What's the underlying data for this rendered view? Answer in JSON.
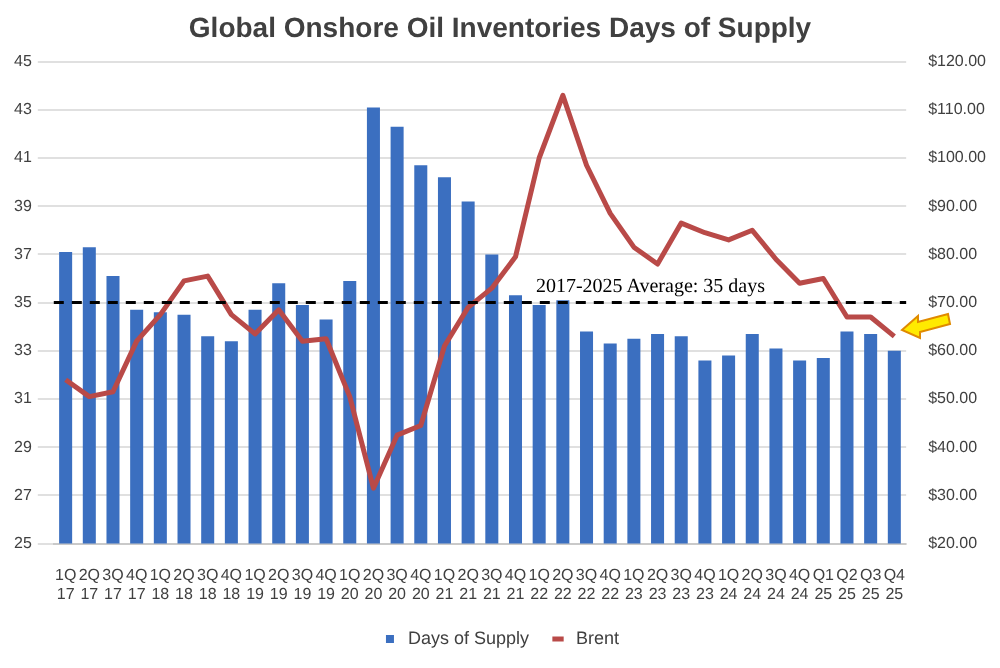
{
  "chart_data": {
    "type": "bar",
    "title": "Global Onshore Oil Inventories Days of Supply",
    "categories": [
      "1Q 17",
      "2Q 17",
      "3Q 17",
      "4Q 17",
      "1Q 18",
      "2Q 18",
      "3Q 18",
      "4Q 18",
      "1Q 19",
      "2Q 19",
      "3Q 19",
      "4Q 19",
      "1Q 20",
      "2Q 20",
      "3Q 20",
      "4Q 20",
      "1Q 21",
      "2Q 21",
      "3Q 21",
      "4Q 21",
      "1Q 22",
      "2Q 22",
      "3Q 22",
      "4Q 22",
      "1Q 23",
      "2Q 23",
      "3Q 23",
      "4Q 23",
      "1Q 24",
      "2Q 24",
      "3Q 24",
      "4Q 24",
      "Q1 25",
      "Q2 25",
      "Q3 25",
      "Q4 25"
    ],
    "series": [
      {
        "name": "Days of Supply",
        "type": "bar",
        "color": "#3b6fc0",
        "values": [
          37.1,
          37.3,
          36.1,
          34.7,
          34.6,
          34.5,
          33.6,
          33.4,
          34.7,
          35.8,
          34.9,
          34.3,
          35.9,
          43.1,
          42.3,
          40.7,
          40.2,
          39.2,
          37.0,
          35.3,
          34.9,
          35.1,
          33.8,
          33.3,
          33.5,
          33.7,
          33.6,
          32.6,
          32.8,
          33.7,
          33.1,
          32.6,
          32.7,
          33.8,
          33.7,
          33.0
        ]
      },
      {
        "name": "Brent",
        "type": "line",
        "axis": "y2",
        "color": "#b94a48",
        "values": [
          54,
          50.5,
          51.5,
          62,
          67.5,
          74.5,
          75.5,
          67.5,
          63.5,
          68.5,
          62,
          62.5,
          50.5,
          31.5,
          42.5,
          44.5,
          61,
          69,
          73,
          79.5,
          100,
          113,
          98.5,
          88.5,
          81.5,
          78,
          86.5,
          84.5,
          83,
          85,
          79,
          74,
          75,
          67,
          67,
          63
        ]
      }
    ],
    "ylim": [
      25,
      45
    ],
    "yticks": [
      25,
      27,
      29,
      31,
      33,
      35,
      37,
      39,
      41,
      43,
      45
    ],
    "y2lim": [
      20,
      120
    ],
    "y2ticks": [
      {
        "value": 20,
        "label": "$20.00"
      },
      {
        "value": 30,
        "label": "$30.00"
      },
      {
        "value": 40,
        "label": "$40.00"
      },
      {
        "value": 50,
        "label": "$50.00"
      },
      {
        "value": 60,
        "label": "$60.00"
      },
      {
        "value": 70,
        "label": "$70.00"
      },
      {
        "value": 80,
        "label": "$80.00"
      },
      {
        "value": 90,
        "label": "$90.00"
      },
      {
        "value": 100,
        "label": "$100.00"
      },
      {
        "value": 110,
        "label": "$110.00"
      },
      {
        "value": 120,
        "label": "$120.00"
      }
    ],
    "ref_lines": [
      {
        "axis": "y",
        "value": 35,
        "label": "2017-2025 Average: 35 days",
        "color": "#000000",
        "line_style": "dashed"
      }
    ],
    "grid": "y",
    "legend": "bottom"
  }
}
